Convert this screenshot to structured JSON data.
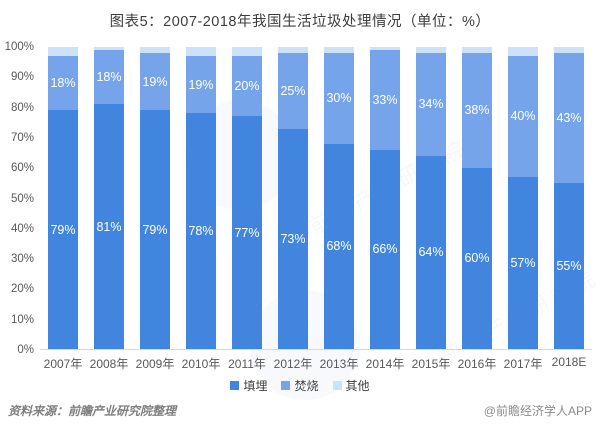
{
  "title": "图表5：2007-2018年我国生活垃圾处理情况（单位：%）",
  "chart_data": {
    "type": "bar",
    "stacked": true,
    "unit": "%",
    "title": "图表5：2007-2018年我国生活垃圾处理情况（单位：%）",
    "categories": [
      "2007年",
      "2008年",
      "2009年",
      "2010年",
      "2011年",
      "2012年",
      "2013年",
      "2014年",
      "2015年",
      "2016年",
      "2017年",
      "2018E"
    ],
    "series": [
      {
        "name": "填埋",
        "color": "#4285de",
        "show_labels": true,
        "values": [
          79,
          81,
          79,
          78,
          77,
          73,
          68,
          66,
          64,
          60,
          57,
          55
        ]
      },
      {
        "name": "焚烧",
        "color": "#76a4ea",
        "show_labels": true,
        "values": [
          18,
          18,
          19,
          19,
          20,
          25,
          30,
          33,
          34,
          38,
          40,
          43
        ]
      },
      {
        "name": "其他",
        "color": "#cde1f8",
        "show_labels": false,
        "values": [
          3,
          1,
          2,
          3,
          3,
          2,
          2,
          1,
          2,
          2,
          3,
          2
        ]
      }
    ],
    "ylim": [
      0,
      100
    ],
    "y_ticks": [
      "100%",
      "90%",
      "80%",
      "70%",
      "60%",
      "50%",
      "40%",
      "30%",
      "20%",
      "10%",
      "0%"
    ],
    "grid": false,
    "legend_position": "bottom"
  },
  "footer": {
    "source": "资料来源：前瞻产业研究院整理",
    "credit": "@前瞻经济学人APP"
  },
  "watermark": {
    "text": "前瞻产业研究院"
  }
}
